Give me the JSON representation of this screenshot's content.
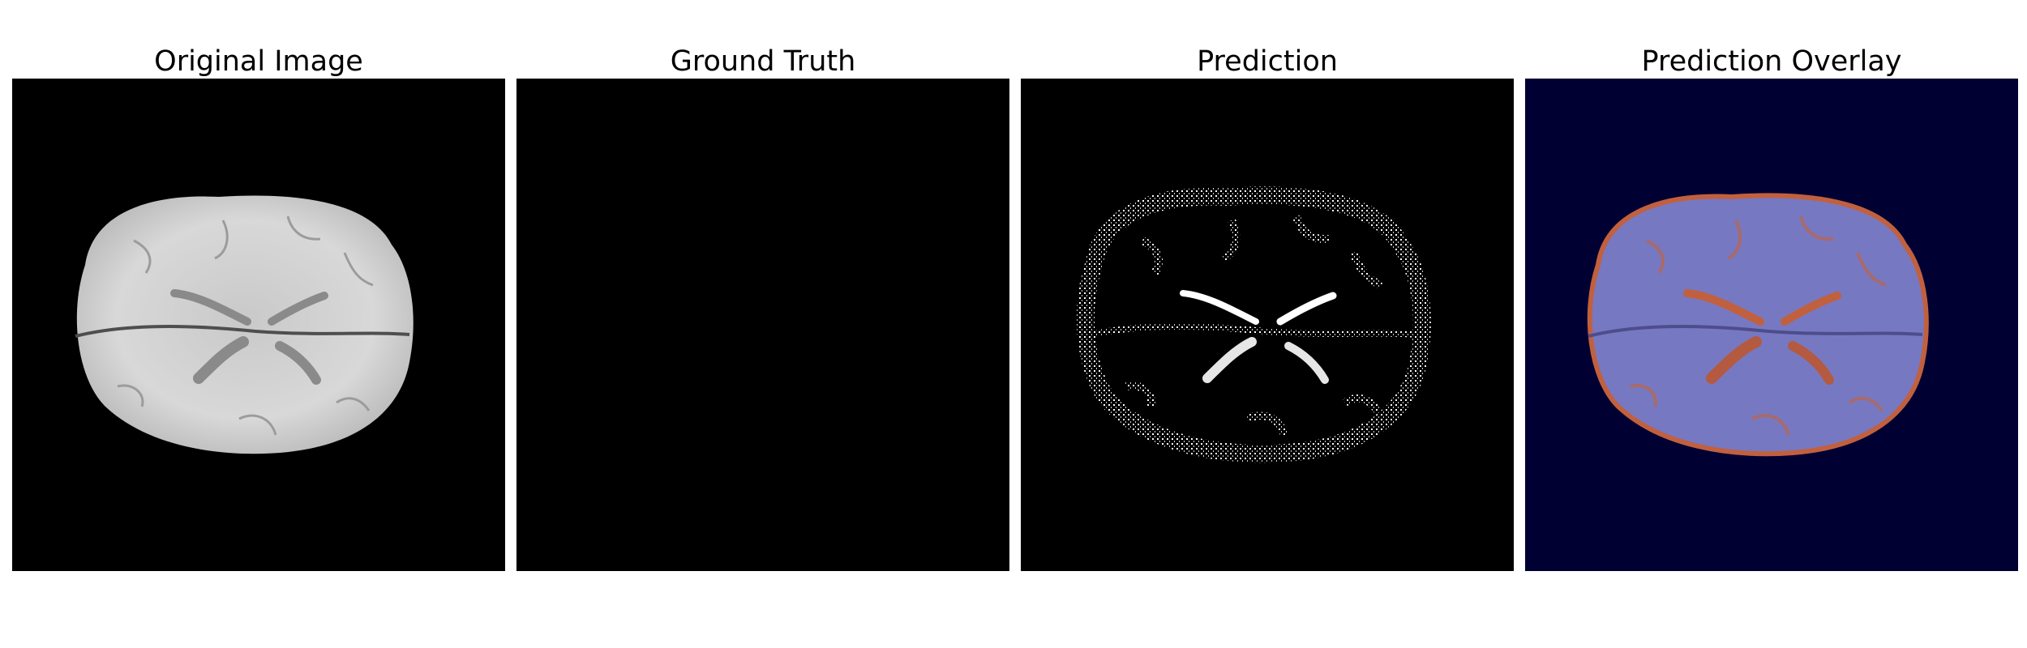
{
  "panels": [
    {
      "title": "Original Image",
      "image": "flair-mri-axial-slice",
      "background": "#000000"
    },
    {
      "title": "Ground Truth",
      "image": "empty-segmentation-mask",
      "background": "#000000"
    },
    {
      "title": "Prediction",
      "image": "predicted-segmentation-mask",
      "background": "#000000"
    },
    {
      "title": "Prediction Overlay",
      "image": "prediction-overlay-on-mri",
      "background": "#000033"
    }
  ],
  "colors": {
    "overlay_brain": "#7778c2",
    "overlay_prediction": "#c1603e",
    "mask": "#ffffff"
  }
}
